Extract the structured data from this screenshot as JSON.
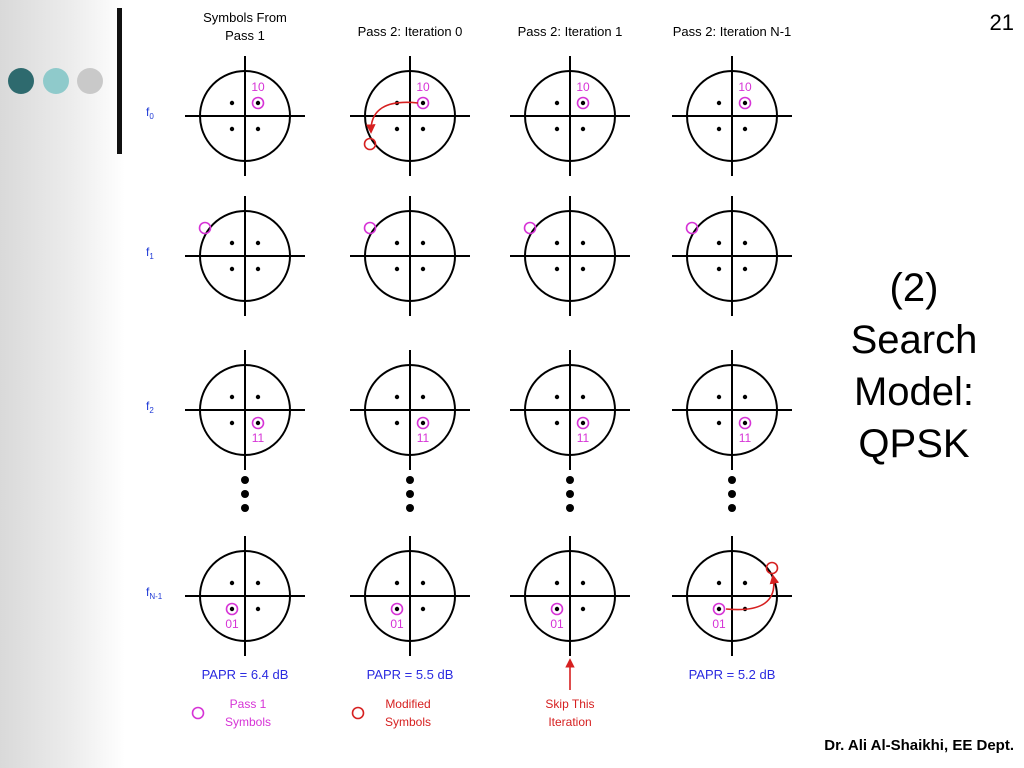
{
  "slide": {
    "number": "21",
    "title_lines": [
      "(2)",
      "Search",
      "Model:",
      "QPSK"
    ],
    "footer": "Dr. Ali Al-Shaikhi, EE Dept."
  },
  "decor": {
    "dot_colors": [
      "#2e6a6e",
      "#8fcacb",
      "#c9c9c9"
    ]
  },
  "diagram": {
    "columns": [
      {
        "title_lines": [
          "Symbols From",
          "Pass 1"
        ]
      },
      {
        "title_lines": [
          "Pass 2: Iteration 0"
        ]
      },
      {
        "title_lines": [
          "Pass 2: Iteration 1"
        ]
      },
      {
        "title_lines": [
          "Pass 2: Iteration N-1"
        ]
      }
    ],
    "rows": [
      {
        "label": "f",
        "sub": "0"
      },
      {
        "label": "f",
        "sub": "1"
      },
      {
        "label": "f",
        "sub": "2"
      },
      {
        "label": "f",
        "sub": "N-1"
      }
    ],
    "symbol_labels": {
      "f0": "10",
      "f2": "11",
      "fN1": "01"
    },
    "papr": [
      "PAPR = 6.4 dB",
      "PAPR = 5.5 dB",
      "",
      "PAPR = 5.2 dB"
    ],
    "legend": {
      "pass1": [
        "Pass 1",
        "Symbols"
      ],
      "modified": [
        "Modified",
        "Symbols"
      ],
      "skip": [
        "Skip This",
        "Iteration"
      ]
    },
    "colors": {
      "magenta": "#d633d6",
      "red": "#d62020",
      "blue": "#2a2ae0"
    }
  }
}
